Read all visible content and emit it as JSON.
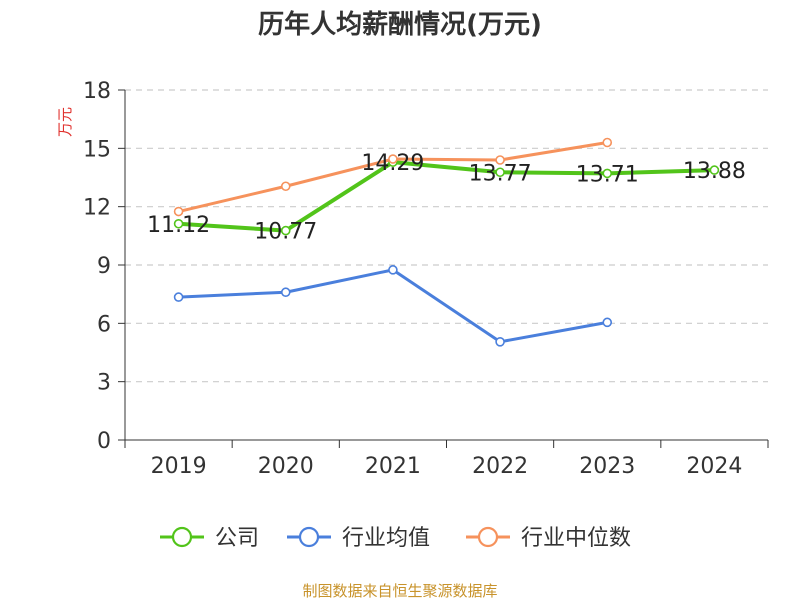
{
  "chart_data": {
    "type": "line",
    "title": "历年人均薪酬情况(万元)",
    "ylabel": "万元",
    "ylim": [
      0,
      18
    ],
    "yticks": [
      0,
      3,
      6,
      9,
      12,
      15,
      18
    ],
    "categories": [
      "2019",
      "2020",
      "2021",
      "2022",
      "2023",
      "2024"
    ],
    "series": [
      {
        "name": "公司",
        "color": "#52c41a",
        "values": [
          11.12,
          10.77,
          14.29,
          13.77,
          13.71,
          13.88
        ],
        "labels": [
          "11.12",
          "10.77",
          "14.29",
          "13.77",
          "13.71",
          "13.88"
        ]
      },
      {
        "name": "行业均值",
        "color": "#4a7fdc",
        "values": [
          7.35,
          7.6,
          8.75,
          5.05,
          6.05,
          null
        ]
      },
      {
        "name": "行业中位数",
        "color": "#f6925c",
        "values": [
          11.75,
          13.05,
          14.45,
          14.4,
          15.3,
          null
        ]
      }
    ],
    "grid": true,
    "legend_position": "bottom"
  },
  "colors": {
    "ylabel": "#e0312d",
    "source": "#c8932b",
    "axis": "#333333",
    "grid": "#cccccc"
  },
  "footer": {
    "source": "制图数据来自恒生聚源数据库"
  }
}
